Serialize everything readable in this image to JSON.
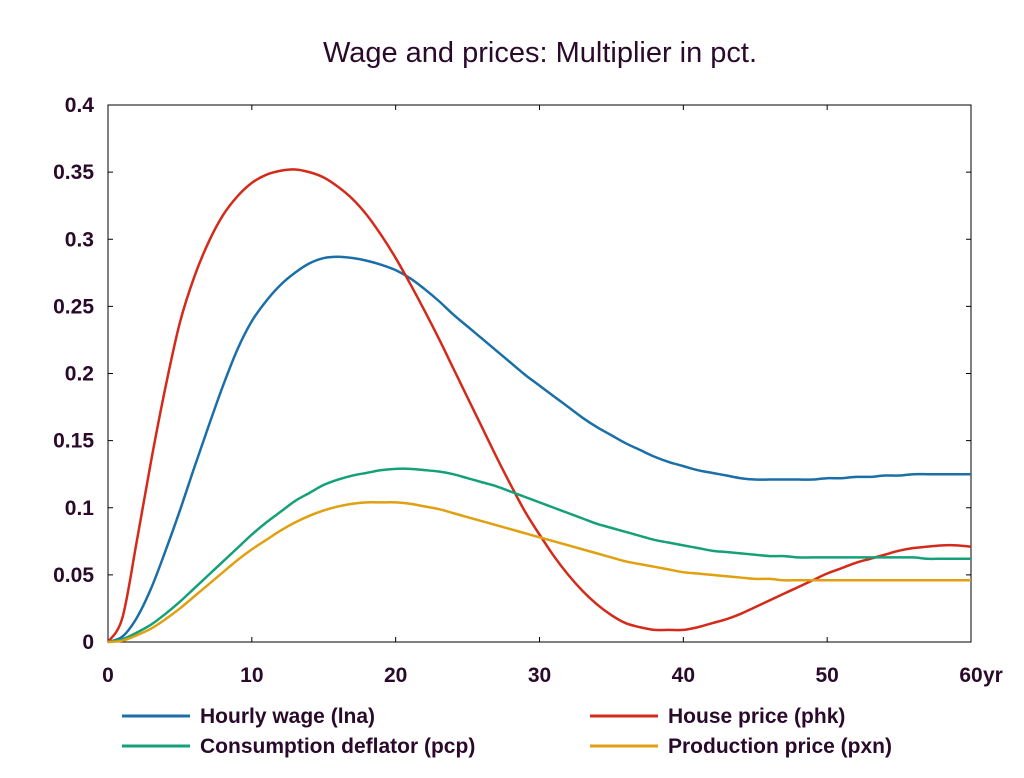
{
  "chart_data": {
    "type": "line",
    "title": "Wage and prices: Multiplier in pct.",
    "xlabel": "",
    "ylabel": "",
    "x_unit_label": "yr",
    "xlim": [
      0,
      60
    ],
    "ylim": [
      0,
      0.4
    ],
    "x_ticks": [
      "0",
      "10",
      "20",
      "30",
      "40",
      "50",
      "60"
    ],
    "y_ticks": [
      "0",
      "0.05",
      "0.1",
      "0.15",
      "0.2",
      "0.25",
      "0.3",
      "0.35",
      "0.4"
    ],
    "grid": false,
    "legend_position": "bottom",
    "x": [
      0,
      1,
      2,
      3,
      4,
      5,
      6,
      7,
      8,
      9,
      10,
      11,
      12,
      13,
      14,
      15,
      16,
      17,
      18,
      19,
      20,
      21,
      22,
      23,
      24,
      25,
      26,
      27,
      28,
      29,
      30,
      31,
      32,
      33,
      34,
      35,
      36,
      37,
      38,
      39,
      40,
      41,
      42,
      43,
      44,
      45,
      46,
      47,
      48,
      49,
      50,
      51,
      52,
      53,
      54,
      55,
      56,
      57,
      58,
      59,
      60
    ],
    "series": [
      {
        "name": "Hourly wage (lna)",
        "color": "#1a6fa8",
        "values": [
          0,
          0.004,
          0.018,
          0.04,
          0.068,
          0.098,
          0.13,
          0.161,
          0.191,
          0.218,
          0.239,
          0.254,
          0.266,
          0.275,
          0.282,
          0.286,
          0.287,
          0.286,
          0.284,
          0.281,
          0.277,
          0.271,
          0.263,
          0.254,
          0.244,
          0.235,
          0.226,
          0.217,
          0.208,
          0.199,
          0.191,
          0.183,
          0.175,
          0.167,
          0.16,
          0.154,
          0.148,
          0.143,
          0.138,
          0.134,
          0.131,
          0.128,
          0.126,
          0.124,
          0.122,
          0.121,
          0.121,
          0.121,
          0.121,
          0.121,
          0.122,
          0.122,
          0.123,
          0.123,
          0.124,
          0.124,
          0.125,
          0.125,
          0.125,
          0.125,
          0.125
        ]
      },
      {
        "name": "House price (phk)",
        "color": "#d42a1a",
        "values": [
          0,
          0.018,
          0.075,
          0.135,
          0.19,
          0.238,
          0.272,
          0.298,
          0.318,
          0.332,
          0.342,
          0.348,
          0.351,
          0.352,
          0.35,
          0.346,
          0.339,
          0.33,
          0.318,
          0.303,
          0.286,
          0.267,
          0.247,
          0.226,
          0.204,
          0.182,
          0.16,
          0.138,
          0.117,
          0.097,
          0.08,
          0.064,
          0.05,
          0.038,
          0.028,
          0.02,
          0.014,
          0.011,
          0.009,
          0.009,
          0.009,
          0.011,
          0.014,
          0.017,
          0.021,
          0.026,
          0.031,
          0.036,
          0.041,
          0.046,
          0.051,
          0.055,
          0.059,
          0.062,
          0.065,
          0.068,
          0.07,
          0.071,
          0.072,
          0.072,
          0.071
        ]
      },
      {
        "name": "Consumption deflator (pcp)",
        "color": "#15a07a",
        "values": [
          0,
          0.002,
          0.007,
          0.013,
          0.021,
          0.03,
          0.04,
          0.05,
          0.06,
          0.07,
          0.08,
          0.089,
          0.097,
          0.105,
          0.111,
          0.117,
          0.121,
          0.124,
          0.126,
          0.128,
          0.129,
          0.129,
          0.128,
          0.127,
          0.125,
          0.122,
          0.119,
          0.116,
          0.112,
          0.108,
          0.104,
          0.1,
          0.096,
          0.092,
          0.088,
          0.085,
          0.082,
          0.079,
          0.076,
          0.074,
          0.072,
          0.07,
          0.068,
          0.067,
          0.066,
          0.065,
          0.064,
          0.064,
          0.063,
          0.063,
          0.063,
          0.063,
          0.063,
          0.063,
          0.063,
          0.063,
          0.063,
          0.062,
          0.062,
          0.062,
          0.062
        ]
      },
      {
        "name": "Production price (pxn)",
        "color": "#e0a010",
        "values": [
          0,
          0.001,
          0.005,
          0.01,
          0.017,
          0.025,
          0.034,
          0.043,
          0.052,
          0.061,
          0.069,
          0.076,
          0.083,
          0.089,
          0.094,
          0.098,
          0.101,
          0.103,
          0.104,
          0.104,
          0.104,
          0.103,
          0.101,
          0.099,
          0.096,
          0.093,
          0.09,
          0.087,
          0.084,
          0.081,
          0.078,
          0.075,
          0.072,
          0.069,
          0.066,
          0.063,
          0.06,
          0.058,
          0.056,
          0.054,
          0.052,
          0.051,
          0.05,
          0.049,
          0.048,
          0.047,
          0.047,
          0.046,
          0.046,
          0.046,
          0.046,
          0.046,
          0.046,
          0.046,
          0.046,
          0.046,
          0.046,
          0.046,
          0.046,
          0.046,
          0.046
        ]
      }
    ]
  }
}
